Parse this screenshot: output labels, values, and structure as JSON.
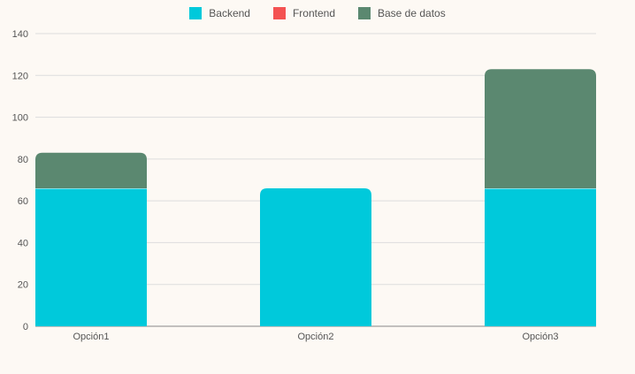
{
  "chart_data": {
    "type": "bar",
    "stacked": true,
    "categories": [
      "Opción1",
      "Opción2",
      "Opción3"
    ],
    "series": [
      {
        "name": "Backend",
        "color": "#00c9db",
        "values": [
          66,
          66,
          66
        ]
      },
      {
        "name": "Frontend",
        "color": "#f45252",
        "values": [
          0,
          0,
          0
        ]
      },
      {
        "name": "Base de datos",
        "color": "#5b8870",
        "values": [
          17,
          0,
          57
        ]
      }
    ],
    "ylim": [
      0,
      140
    ],
    "yticks": [
      0,
      20,
      40,
      60,
      80,
      100,
      120,
      140
    ],
    "grid": true,
    "legend_position": "top",
    "title": "",
    "xlabel": "",
    "ylabel": ""
  }
}
